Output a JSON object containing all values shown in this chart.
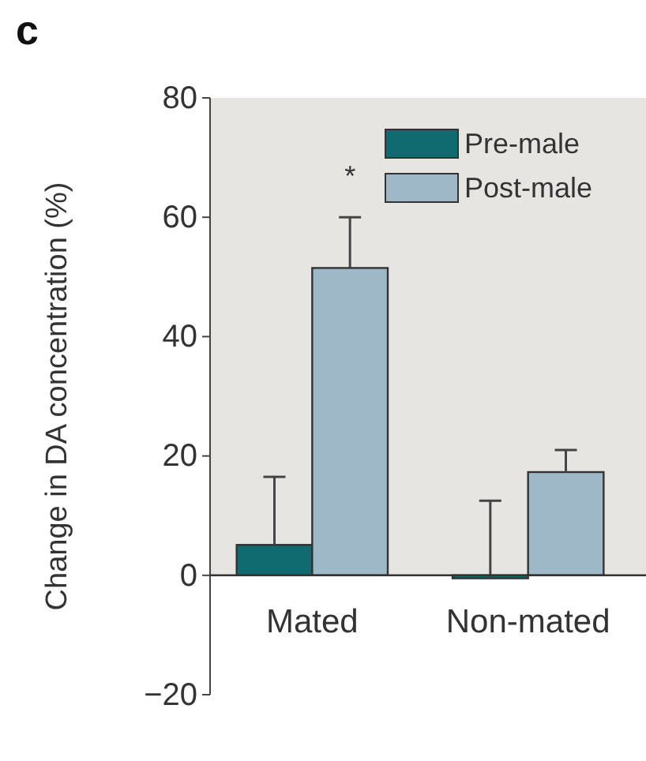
{
  "chart_data": {
    "type": "bar",
    "title": "c",
    "ylabel": "Change in DA concentration (%)",
    "categories": [
      "Mated",
      "Non-mated"
    ],
    "series": [
      {
        "name": "Pre-male",
        "color": "#0f6b70",
        "values": [
          5.1,
          -0.5
        ],
        "errors": [
          [
            5.1,
            16.5
          ],
          [
            -0.5,
            12.5
          ]
        ]
      },
      {
        "name": "Post-male",
        "color": "#9fb8c8",
        "values": [
          51.5,
          17.3
        ],
        "errors": [
          [
            51.5,
            60
          ],
          [
            17.3,
            21
          ]
        ]
      }
    ],
    "ylim": [
      -20,
      80
    ],
    "yticks": [
      -20,
      0,
      20,
      40,
      60,
      80
    ],
    "legend": "top right",
    "grid": false,
    "annotations": [
      "*"
    ],
    "bands": [
      {
        "axis": "y",
        "from": 0,
        "to": 80,
        "color": "#e6e5e2"
      }
    ]
  }
}
